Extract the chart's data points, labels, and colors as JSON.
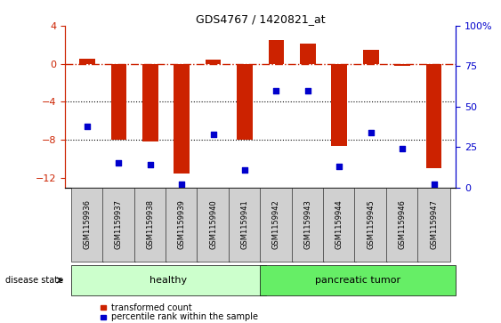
{
  "title": "GDS4767 / 1420821_at",
  "samples": [
    "GSM1159936",
    "GSM1159937",
    "GSM1159938",
    "GSM1159939",
    "GSM1159940",
    "GSM1159941",
    "GSM1159942",
    "GSM1159943",
    "GSM1159944",
    "GSM1159945",
    "GSM1159946",
    "GSM1159947"
  ],
  "transformed_counts": [
    0.5,
    -8.0,
    -8.2,
    -11.5,
    0.4,
    -8.0,
    2.5,
    2.1,
    -8.6,
    1.5,
    -0.2,
    -11.0
  ],
  "percentile_ranks": [
    38,
    15,
    14,
    2,
    33,
    11,
    60,
    60,
    13,
    34,
    24,
    2
  ],
  "healthy_color": "#ccffcc",
  "tumor_color": "#66ee66",
  "bar_color": "#cc2200",
  "dot_color": "#0000cc",
  "ylim_left": [
    -13,
    4
  ],
  "ylim_right": [
    0,
    100
  ],
  "yticks_left": [
    -12,
    -8,
    -4,
    0,
    4
  ],
  "yticks_right": [
    0,
    25,
    50,
    75,
    100
  ],
  "hline_y": 0,
  "dotted_lines": [
    -4,
    -8
  ],
  "bar_width": 0.5,
  "n_healthy": 6,
  "n_tumor": 6,
  "background_color": "#ffffff"
}
